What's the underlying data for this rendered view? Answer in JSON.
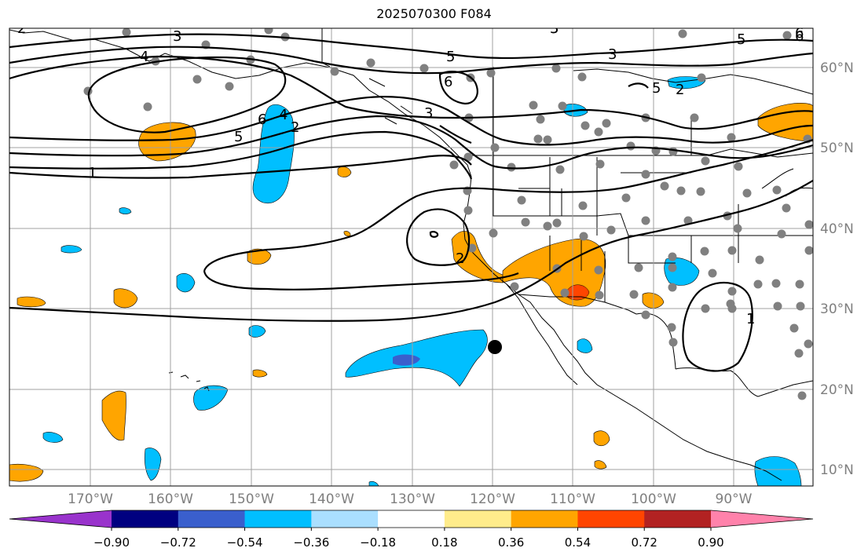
{
  "title": "2025070300 F084",
  "longitude_labels": [
    "170°W",
    "160°W",
    "150°W",
    "140°W",
    "130°W",
    "120°W",
    "110°W",
    "100°W",
    "90°W"
  ],
  "latitude_labels": [
    "60°N",
    "50°N",
    "40°N",
    "30°N",
    "20°N",
    "10°N"
  ],
  "colorbar": {
    "tick_labels": [
      "−0.90",
      "−0.72",
      "−0.54",
      "−0.36",
      "−0.18",
      "0.18",
      "0.36",
      "0.54",
      "0.72",
      "0.90"
    ],
    "colors": [
      "#9933cc",
      "#000080",
      "#3a5fcd",
      "#00bfff",
      "#aadfff",
      "#ffffff",
      "#ffec8b",
      "#ffa500",
      "#ff4500",
      "#b22222",
      "#ff82ab"
    ]
  },
  "contour_labels": [
    "2",
    "3",
    "4",
    "5",
    "6",
    "3",
    "5",
    "3",
    "5",
    "6",
    "5",
    "1",
    "2",
    "6",
    "5",
    "4",
    "2",
    "3",
    "2",
    "1",
    "6"
  ],
  "colors": {
    "ocean": "#ffffff",
    "positive_shading": "#ffa500",
    "strong_positive": "#ff4500",
    "negative_shading": "#00bfff",
    "strong_negative": "#3a5fcd",
    "station_dot": "#808080",
    "grid": "#a0a0a0"
  }
}
